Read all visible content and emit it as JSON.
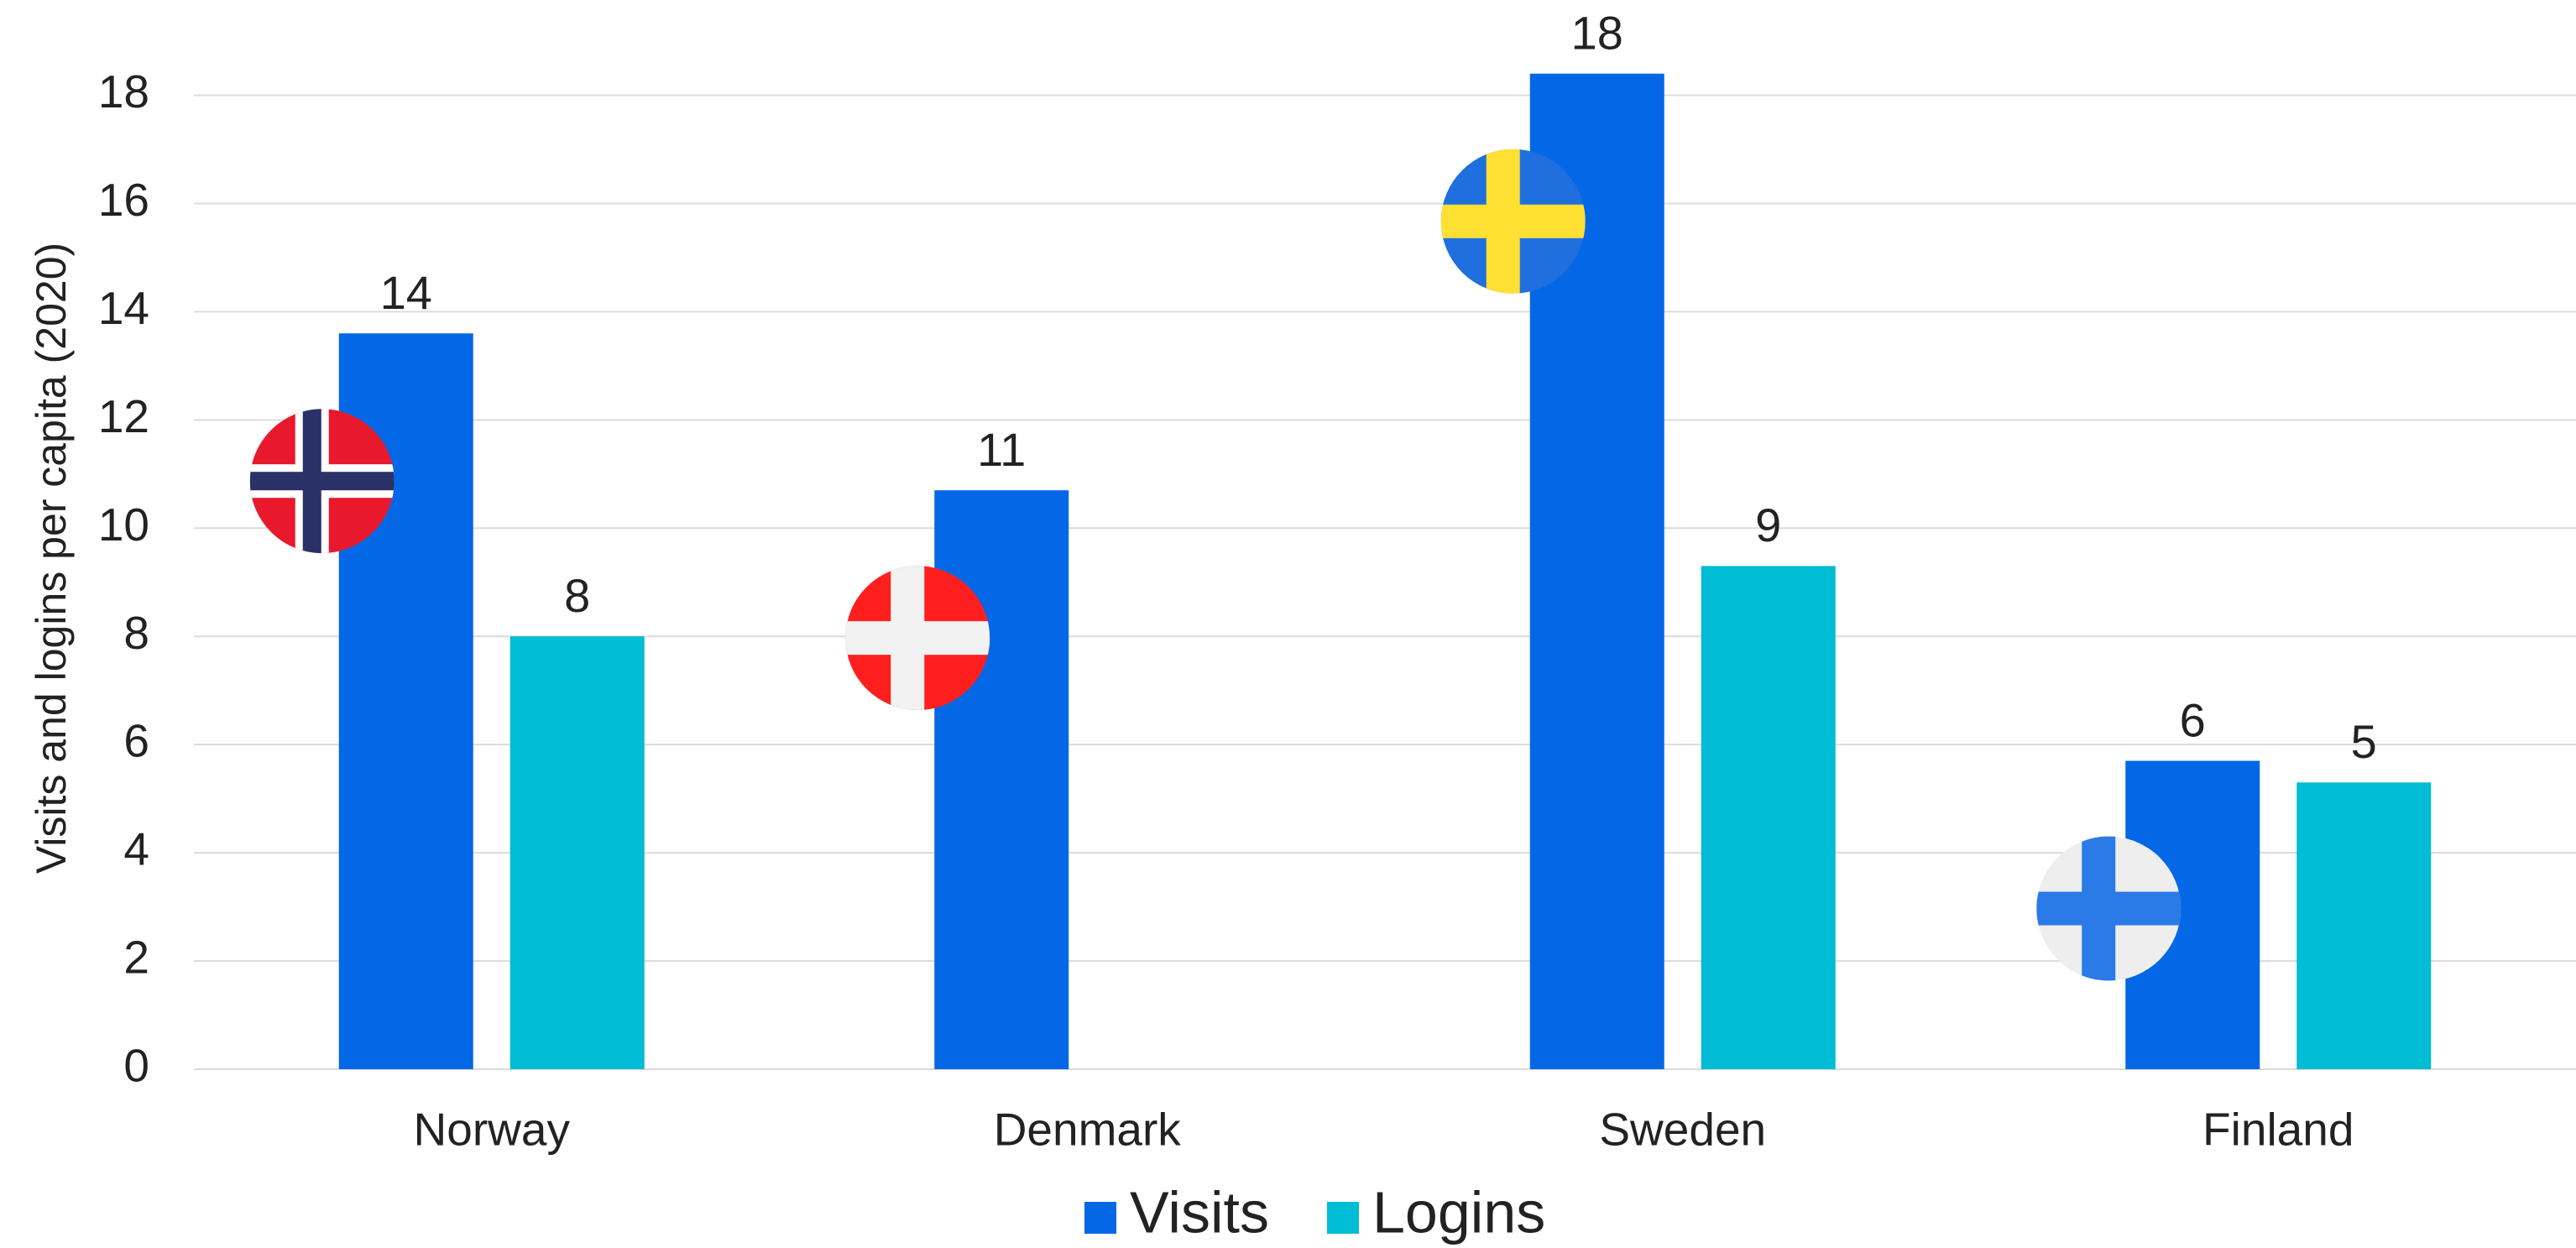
{
  "chart_data": {
    "type": "bar",
    "y_axis_label": "Visits and logins per capita (2020)",
    "categories": [
      "Norway",
      "Denmark",
      "Sweden",
      "Finland"
    ],
    "series": [
      {
        "name": "Visits",
        "color": "#0468e6",
        "values": [
          13.6,
          10.7,
          18.4,
          5.7
        ],
        "value_labels": [
          "14",
          "11",
          "18",
          "6"
        ]
      },
      {
        "name": "Logins",
        "color": "#00bcd4",
        "values": [
          8.0,
          null,
          9.3,
          5.3
        ],
        "value_labels": [
          "8",
          null,
          "9",
          "5"
        ]
      }
    ],
    "ylim": [
      0,
      19
    ],
    "yticks": [
      0,
      2,
      4,
      6,
      8,
      10,
      12,
      14,
      16,
      18
    ],
    "grid": true,
    "legend": "bottom"
  }
}
